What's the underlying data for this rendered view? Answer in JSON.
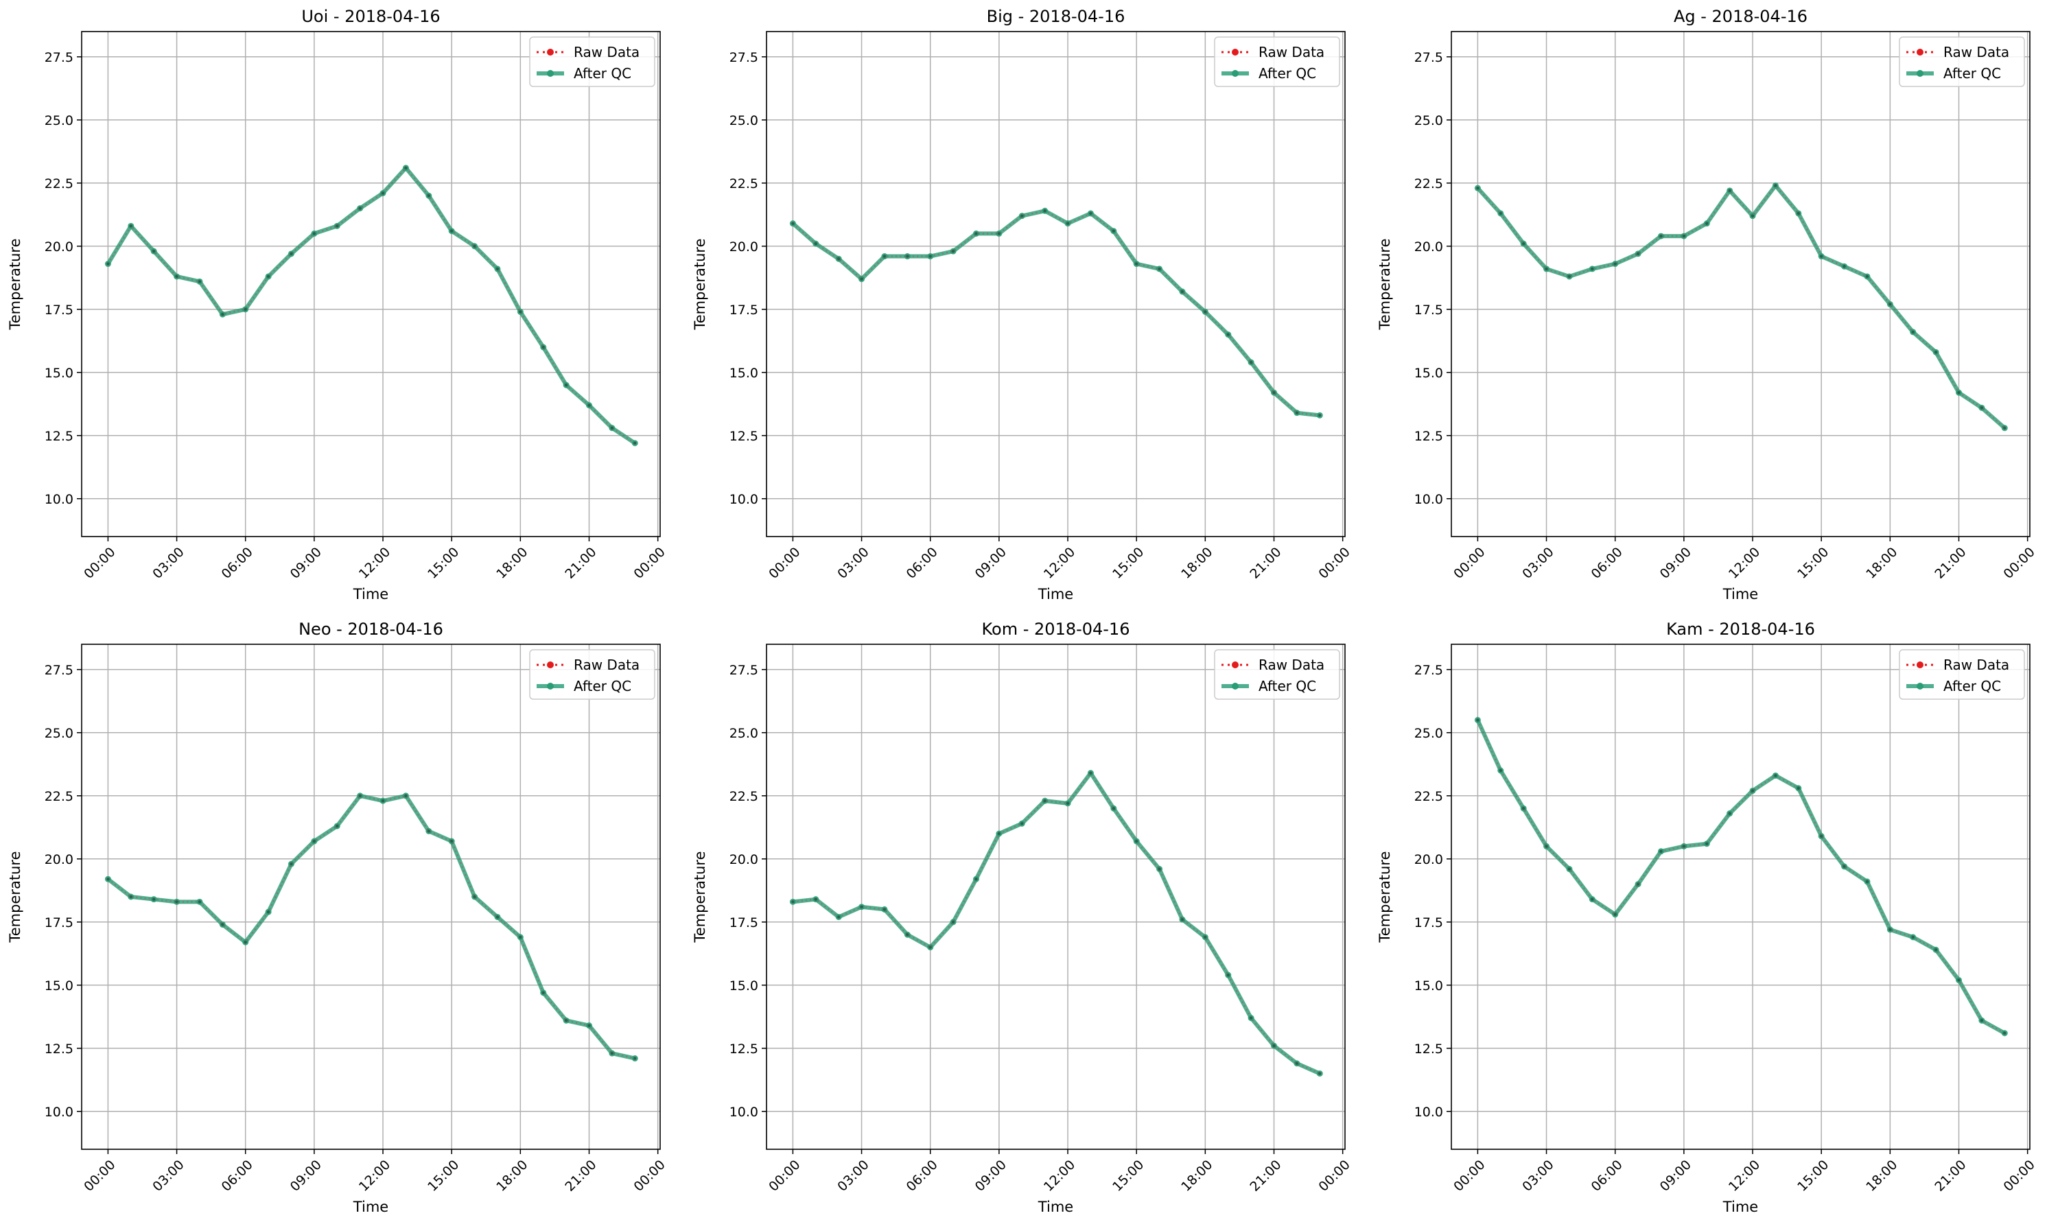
{
  "colors": {
    "raw_data": "#e41a1c",
    "after_qc": "#2a9d77",
    "grid": "#b0b0b0",
    "axes": "#000000"
  },
  "chart_data": [
    {
      "type": "line",
      "title": "Uoi - 2018-04-16",
      "xlabel": "Time",
      "ylabel": "Temperature",
      "ylim": [
        8.5,
        28.5
      ],
      "yticks": [
        "10.0",
        "12.5",
        "15.0",
        "17.5",
        "20.0",
        "22.5",
        "25.0",
        "27.5"
      ],
      "xticks": [
        "00:00",
        "03:00",
        "06:00",
        "09:00",
        "12:00",
        "15:00",
        "18:00",
        "21:00",
        "00:00"
      ],
      "grid": true,
      "legend": "top-right",
      "x_hours": [
        0,
        1,
        2,
        3,
        4,
        5,
        6,
        7,
        8,
        9,
        10,
        11,
        12,
        13,
        14,
        15,
        16,
        17,
        18,
        19,
        20,
        21,
        22,
        23
      ],
      "series": [
        {
          "name": "Raw Data",
          "style": "dotted",
          "values": [
            19.3,
            20.8,
            19.8,
            18.8,
            18.6,
            17.3,
            17.5,
            18.8,
            19.7,
            20.5,
            20.8,
            21.5,
            22.1,
            23.1,
            22.0,
            20.6,
            20.0,
            19.1,
            17.4,
            16.0,
            14.5,
            13.7,
            12.8,
            12.2
          ]
        },
        {
          "name": "After QC",
          "style": "solid",
          "values": [
            19.3,
            20.8,
            19.8,
            18.8,
            18.6,
            17.3,
            17.5,
            18.8,
            19.7,
            20.5,
            20.8,
            21.5,
            22.1,
            23.1,
            22.0,
            20.6,
            20.0,
            19.1,
            17.4,
            16.0,
            14.5,
            13.7,
            12.8,
            12.2
          ]
        }
      ]
    },
    {
      "type": "line",
      "title": "Big - 2018-04-16",
      "xlabel": "Time",
      "ylabel": "Temperature",
      "ylim": [
        8.5,
        28.5
      ],
      "yticks": [
        "10.0",
        "12.5",
        "15.0",
        "17.5",
        "20.0",
        "22.5",
        "25.0",
        "27.5"
      ],
      "xticks": [
        "00:00",
        "03:00",
        "06:00",
        "09:00",
        "12:00",
        "15:00",
        "18:00",
        "21:00",
        "00:00"
      ],
      "grid": true,
      "legend": "top-right",
      "x_hours": [
        0,
        1,
        2,
        3,
        4,
        5,
        6,
        7,
        8,
        9,
        10,
        11,
        12,
        13,
        14,
        15,
        16,
        17,
        18,
        19,
        20,
        21,
        22,
        23
      ],
      "series": [
        {
          "name": "Raw Data",
          "style": "dotted",
          "values": [
            20.9,
            20.1,
            19.5,
            18.7,
            19.6,
            19.6,
            19.6,
            19.8,
            20.5,
            20.5,
            21.2,
            21.4,
            20.9,
            21.3,
            20.6,
            19.3,
            19.1,
            18.2,
            17.4,
            16.5,
            15.4,
            14.2,
            13.4,
            13.3
          ]
        },
        {
          "name": "After QC",
          "style": "solid",
          "values": [
            20.9,
            20.1,
            19.5,
            18.7,
            19.6,
            19.6,
            19.6,
            19.8,
            20.5,
            20.5,
            21.2,
            21.4,
            20.9,
            21.3,
            20.6,
            19.3,
            19.1,
            18.2,
            17.4,
            16.5,
            15.4,
            14.2,
            13.4,
            13.3
          ]
        }
      ]
    },
    {
      "type": "line",
      "title": "Ag - 2018-04-16",
      "xlabel": "Time",
      "ylabel": "Temperature",
      "ylim": [
        8.5,
        28.5
      ],
      "yticks": [
        "10.0",
        "12.5",
        "15.0",
        "17.5",
        "20.0",
        "22.5",
        "25.0",
        "27.5"
      ],
      "xticks": [
        "00:00",
        "03:00",
        "06:00",
        "09:00",
        "12:00",
        "15:00",
        "18:00",
        "21:00",
        "00:00"
      ],
      "grid": true,
      "legend": "top-right",
      "x_hours": [
        0,
        1,
        2,
        3,
        4,
        5,
        6,
        7,
        8,
        9,
        10,
        11,
        12,
        13,
        14,
        15,
        16,
        17,
        18,
        19,
        20,
        21,
        22,
        23
      ],
      "series": [
        {
          "name": "Raw Data",
          "style": "dotted",
          "values": [
            22.3,
            21.3,
            20.1,
            19.1,
            18.8,
            19.1,
            19.3,
            19.7,
            20.4,
            20.4,
            20.9,
            22.2,
            21.2,
            22.4,
            21.3,
            19.6,
            19.2,
            18.8,
            17.7,
            16.6,
            15.8,
            14.2,
            13.6,
            12.8
          ]
        },
        {
          "name": "After QC",
          "style": "solid",
          "values": [
            22.3,
            21.3,
            20.1,
            19.1,
            18.8,
            19.1,
            19.3,
            19.7,
            20.4,
            20.4,
            20.9,
            22.2,
            21.2,
            22.4,
            21.3,
            19.6,
            19.2,
            18.8,
            17.7,
            16.6,
            15.8,
            14.2,
            13.6,
            12.8
          ]
        }
      ]
    },
    {
      "type": "line",
      "title": "Neo - 2018-04-16",
      "xlabel": "Time",
      "ylabel": "Temperature",
      "ylim": [
        8.5,
        28.5
      ],
      "yticks": [
        "10.0",
        "12.5",
        "15.0",
        "17.5",
        "20.0",
        "22.5",
        "25.0",
        "27.5"
      ],
      "xticks": [
        "00:00",
        "03:00",
        "06:00",
        "09:00",
        "12:00",
        "15:00",
        "18:00",
        "21:00",
        "00:00"
      ],
      "grid": true,
      "legend": "top-right",
      "x_hours": [
        0,
        1,
        2,
        3,
        4,
        5,
        6,
        7,
        8,
        9,
        10,
        11,
        12,
        13,
        14,
        15,
        16,
        17,
        18,
        19,
        20,
        21,
        22,
        23
      ],
      "series": [
        {
          "name": "Raw Data",
          "style": "dotted",
          "values": [
            19.2,
            18.5,
            18.4,
            18.3,
            18.3,
            17.4,
            16.7,
            17.9,
            19.8,
            20.7,
            21.3,
            22.5,
            22.3,
            22.5,
            21.1,
            20.7,
            18.5,
            17.7,
            16.9,
            14.7,
            13.6,
            13.4,
            12.3,
            12.1
          ]
        },
        {
          "name": "After QC",
          "style": "solid",
          "values": [
            19.2,
            18.5,
            18.4,
            18.3,
            18.3,
            17.4,
            16.7,
            17.9,
            19.8,
            20.7,
            21.3,
            22.5,
            22.3,
            22.5,
            21.1,
            20.7,
            18.5,
            17.7,
            16.9,
            14.7,
            13.6,
            13.4,
            12.3,
            12.1
          ]
        }
      ]
    },
    {
      "type": "line",
      "title": "Kom - 2018-04-16",
      "xlabel": "Time",
      "ylabel": "Temperature",
      "ylim": [
        8.5,
        28.5
      ],
      "yticks": [
        "10.0",
        "12.5",
        "15.0",
        "17.5",
        "20.0",
        "22.5",
        "25.0",
        "27.5"
      ],
      "xticks": [
        "00:00",
        "03:00",
        "06:00",
        "09:00",
        "12:00",
        "15:00",
        "18:00",
        "21:00",
        "00:00"
      ],
      "grid": true,
      "legend": "top-right",
      "x_hours": [
        0,
        1,
        2,
        3,
        4,
        5,
        6,
        7,
        8,
        9,
        10,
        11,
        12,
        13,
        14,
        15,
        16,
        17,
        18,
        19,
        20,
        21,
        22,
        23
      ],
      "series": [
        {
          "name": "Raw Data",
          "style": "dotted",
          "values": [
            18.3,
            18.4,
            17.7,
            18.1,
            18.0,
            17.0,
            16.5,
            17.5,
            19.2,
            21.0,
            21.4,
            22.3,
            22.2,
            23.4,
            22.0,
            20.7,
            19.6,
            17.6,
            16.9,
            15.4,
            13.7,
            12.6,
            11.9,
            11.5
          ]
        },
        {
          "name": "After QC",
          "style": "solid",
          "values": [
            18.3,
            18.4,
            17.7,
            18.1,
            18.0,
            17.0,
            16.5,
            17.5,
            19.2,
            21.0,
            21.4,
            22.3,
            22.2,
            23.4,
            22.0,
            20.7,
            19.6,
            17.6,
            16.9,
            15.4,
            13.7,
            12.6,
            11.9,
            11.5
          ]
        }
      ]
    },
    {
      "type": "line",
      "title": "Kam - 2018-04-16",
      "xlabel": "Time",
      "ylabel": "Temperature",
      "ylim": [
        8.5,
        28.5
      ],
      "yticks": [
        "10.0",
        "12.5",
        "15.0",
        "17.5",
        "20.0",
        "22.5",
        "25.0",
        "27.5"
      ],
      "xticks": [
        "00:00",
        "03:00",
        "06:00",
        "09:00",
        "12:00",
        "15:00",
        "18:00",
        "21:00",
        "00:00"
      ],
      "grid": true,
      "legend": "top-right",
      "x_hours": [
        0,
        1,
        2,
        3,
        4,
        5,
        6,
        7,
        8,
        9,
        10,
        11,
        12,
        13,
        14,
        15,
        16,
        17,
        18,
        19,
        20,
        21,
        22,
        23
      ],
      "series": [
        {
          "name": "Raw Data",
          "style": "dotted",
          "values": [
            25.5,
            23.5,
            22.0,
            20.5,
            19.6,
            18.4,
            17.8,
            19.0,
            20.3,
            20.5,
            20.6,
            21.8,
            22.7,
            23.3,
            22.8,
            20.9,
            19.7,
            19.1,
            17.2,
            16.9,
            16.4,
            15.2,
            13.6,
            13.1
          ]
        },
        {
          "name": "After QC",
          "style": "solid",
          "values": [
            25.5,
            23.5,
            22.0,
            20.5,
            19.6,
            18.4,
            17.8,
            19.0,
            20.3,
            20.5,
            20.6,
            21.8,
            22.7,
            23.3,
            22.8,
            20.9,
            19.7,
            19.1,
            17.2,
            16.9,
            16.4,
            15.2,
            13.6,
            13.1
          ]
        }
      ]
    }
  ]
}
